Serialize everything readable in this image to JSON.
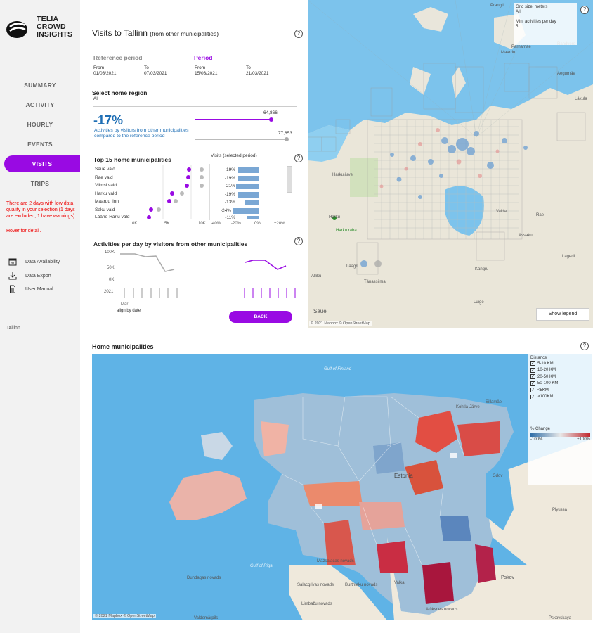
{
  "brand": {
    "line1": "TELIA",
    "line2": "CROWD",
    "line3": "INSIGHTS"
  },
  "nav": [
    {
      "label": "SUMMARY",
      "active": false
    },
    {
      "label": "ACTIVITY",
      "active": false
    },
    {
      "label": "HOURLY",
      "active": false
    },
    {
      "label": "EVENTS",
      "active": false
    },
    {
      "label": "VISITS",
      "active": true
    },
    {
      "label": "TRIPS",
      "active": false
    }
  ],
  "warning": {
    "text": "There are 2 days with low data quality in your selection (1 days are excluded, 1 have warnings).",
    "hover": "Hover for detail."
  },
  "tools": [
    {
      "label": "Data Availability",
      "icon": "calendar-icon"
    },
    {
      "label": "Data Export",
      "icon": "download-icon"
    },
    {
      "label": "User Manual",
      "icon": "document-icon"
    }
  ],
  "footer_city": "Tallinn",
  "panel": {
    "title": "Visits to Tallinn",
    "title_suffix": "(from other municipalities)",
    "reference": {
      "label": "Reference period",
      "from_label": "From",
      "from": "01/03/2021",
      "to_label": "To",
      "to": "07/03/2021"
    },
    "period": {
      "label": "Period",
      "from_label": "From",
      "from": "15/03/2021",
      "to_label": "To",
      "to": "21/03/2021"
    },
    "home_region": {
      "label": "Select home region",
      "value": "All"
    },
    "change": {
      "pct": "-17%",
      "desc": "Activities by visitors from other municipalities compared to the reference period",
      "period_value": "64,866",
      "reference_value": "77,853"
    },
    "top15": {
      "title": "Top 15 home municipalities",
      "visits_header": "Visits (selected period)",
      "rows": [
        {
          "name": "Saue vald",
          "pct": "-19%",
          "change": -19
        },
        {
          "name": "Rae vald",
          "pct": "-19%",
          "change": -19
        },
        {
          "name": "Viimsi vald",
          "pct": "-21%",
          "change": -21
        },
        {
          "name": "Harku vald",
          "pct": "-19%",
          "change": -19
        },
        {
          "name": "Maardu linn",
          "pct": "-13%",
          "change": -13
        },
        {
          "name": "Saku vald",
          "pct": "-24%",
          "change": -24
        },
        {
          "name": "Lääne-Harju vald",
          "pct": "-11%",
          "change": -11
        }
      ],
      "x_ticks": [
        "0K",
        "5K",
        "10K"
      ],
      "pct_ticks": [
        "-40%",
        "-20%",
        "0%",
        "+20%"
      ]
    },
    "activities_chart": {
      "title": "Activities per day by visitors from other municipalities",
      "y_ticks": [
        "100K",
        "50K",
        "0K"
      ],
      "year": "2021",
      "month": "Mar",
      "align": "align by date"
    },
    "back_label": "BACK"
  },
  "topmap": {
    "grid_size_label": "Grid size, meters",
    "grid_size_value": "All",
    "min_activities_label": "Min. activities per day",
    "min_activities_value": "5",
    "show_legend": "Show legend",
    "attribution": "© 2021 Mapbox © OpenStreetMap",
    "places": [
      "Prangli",
      "Pärnamäe",
      "Randvere",
      "Maardu",
      "Aegumäe",
      "Läkula",
      "Harku",
      "Harkujärve",
      "Kangru",
      "Tänassilma",
      "Luige",
      "Alliku",
      "Saue",
      "Lagedi",
      "Assaku",
      "Rae",
      "Laagri",
      "Harku raba",
      "Vaida"
    ]
  },
  "bottom": {
    "title": "Home municipalities",
    "distance_label": "Distance",
    "distances": [
      "5-10 KM",
      "10-20 KM",
      "20-50 KM",
      "50-100 KM",
      "<5KM",
      ">100KM"
    ],
    "change_label": "% Change",
    "change_min": "-100%",
    "change_max": "+100%",
    "attribution": "© 2021 Mapbox © OpenStreetMap",
    "places": [
      "Gulf of Finland",
      "Gulf of Riga",
      "Estonia",
      "Pskov",
      "Gdov",
      "Plyussa",
      "Dundagas novads",
      "Valdemārpils",
      "Salacgrivas novads",
      "Limbažu novads",
      "Mazsalacas novads",
      "Burtnieku novads",
      "Valka",
      "Alūksnes novads",
      "Pskovskaya",
      "Sillamäe",
      "Kohtla-Järve"
    ]
  }
}
